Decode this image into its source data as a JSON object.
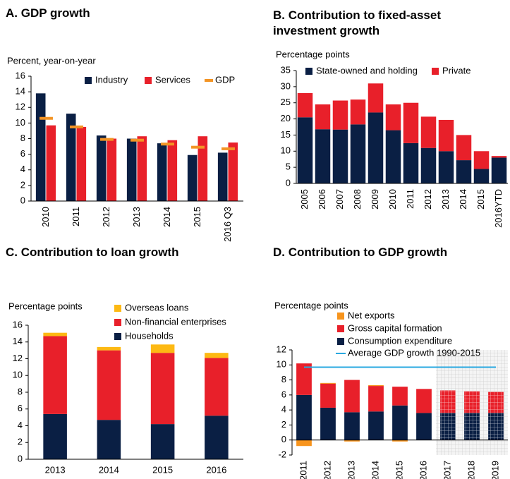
{
  "chart_data": [
    {
      "type": "bar",
      "title": "A. GDP growth",
      "ylabel": "Percent, year-on-year",
      "categories": [
        "2010",
        "2011",
        "2012",
        "2013",
        "2014",
        "2015",
        "2016 Q3"
      ],
      "series": [
        {
          "name": "Industry",
          "color": "#0a1f44",
          "type": "bar",
          "values": [
            13.8,
            11.2,
            8.4,
            8.0,
            7.4,
            5.9,
            6.2
          ]
        },
        {
          "name": "Services",
          "color": "#e8202a",
          "type": "bar",
          "values": [
            9.7,
            9.5,
            8.0,
            8.3,
            7.8,
            8.3,
            7.5
          ]
        },
        {
          "name": "GDP",
          "color": "#f39425",
          "type": "marker",
          "values": [
            10.6,
            9.5,
            7.9,
            7.8,
            7.3,
            6.9,
            6.7
          ]
        }
      ],
      "ylim": [
        0,
        16
      ],
      "yticks": [
        0,
        2,
        4,
        6,
        8,
        10,
        12,
        14,
        16
      ],
      "legend": "top-right",
      "legend_order": "normal"
    },
    {
      "type": "stacked_bar",
      "title": "B. Contribution to fixed-asset investment growth",
      "ylabel": "Percentage points",
      "categories": [
        "2005",
        "2006",
        "2007",
        "2008",
        "2009",
        "2010",
        "2011",
        "2012",
        "2013",
        "2014",
        "2015",
        "2016YTD"
      ],
      "series": [
        {
          "name": "State-owned and holding",
          "color": "#0a1f44",
          "type": "bar",
          "values": [
            20.5,
            16.8,
            16.7,
            18.3,
            22.0,
            16.5,
            12.5,
            11.0,
            10.0,
            7.2,
            4.5,
            8.0
          ]
        },
        {
          "name": "Private",
          "color": "#e8202a",
          "type": "bar",
          "values": [
            7.5,
            7.7,
            9.0,
            7.7,
            9.0,
            8.0,
            12.5,
            9.7,
            9.7,
            7.8,
            5.5,
            0.5
          ]
        }
      ],
      "ylim": [
        0,
        35
      ],
      "yticks": [
        0,
        5,
        10,
        15,
        20,
        25,
        30,
        35
      ],
      "legend": "top",
      "legend_order": "normal"
    },
    {
      "type": "stacked_bar",
      "title": "C. Contribution to loan growth",
      "ylabel": "Percentage points",
      "categories": [
        "2013",
        "2014",
        "2015",
        "2016"
      ],
      "series": [
        {
          "name": "Households",
          "color": "#0a1f44",
          "type": "bar",
          "values": [
            5.4,
            4.7,
            4.2,
            5.2
          ]
        },
        {
          "name": "Non-financial enterprises",
          "color": "#e8202a",
          "type": "bar",
          "values": [
            9.3,
            8.3,
            8.5,
            6.9
          ]
        },
        {
          "name": "Overseas loans",
          "color": "#fdb913",
          "type": "bar",
          "values": [
            0.4,
            0.4,
            1.0,
            0.6
          ]
        }
      ],
      "ylim": [
        0,
        16
      ],
      "yticks": [
        0,
        2,
        4,
        6,
        8,
        10,
        12,
        14,
        16
      ],
      "legend": "top",
      "legend_order": "reversed"
    },
    {
      "type": "stacked_bar",
      "title": "D. Contribution to GDP growth",
      "ylabel": "Percentage points",
      "categories": [
        "2011",
        "2012",
        "2013",
        "2014",
        "2015",
        "2016",
        "2017",
        "2018",
        "2019"
      ],
      "series": [
        {
          "name": "Consumption expenditure",
          "color": "#0a1f44",
          "type": "bar",
          "values": [
            6.0,
            4.3,
            3.7,
            3.8,
            4.6,
            3.6,
            3.6,
            3.6,
            3.6
          ]
        },
        {
          "name": "Gross capital formation",
          "color": "#e8202a",
          "type": "bar",
          "values": [
            4.2,
            3.2,
            4.3,
            3.4,
            2.5,
            3.2,
            3.0,
            2.9,
            2.8
          ]
        },
        {
          "name": "Net exports",
          "color": "#f7941d",
          "type": "bar",
          "values": [
            -0.8,
            0.1,
            -0.2,
            0.1,
            -0.2,
            0.0,
            0.0,
            0.0,
            0.0
          ]
        },
        {
          "name": "Average GDP growth 1990-2015",
          "color": "#29a8e0",
          "type": "line",
          "values": [
            9.7,
            9.7,
            9.7,
            9.7,
            9.7,
            9.7,
            9.7,
            9.7,
            9.7
          ]
        }
      ],
      "hatched": [
        false,
        false,
        false,
        false,
        false,
        false,
        true,
        true,
        true
      ],
      "ylim": [
        -2,
        12
      ],
      "yticks": [
        -2,
        0,
        2,
        4,
        6,
        8,
        10,
        12
      ],
      "legend": "top",
      "legend_order": "reversed"
    }
  ]
}
